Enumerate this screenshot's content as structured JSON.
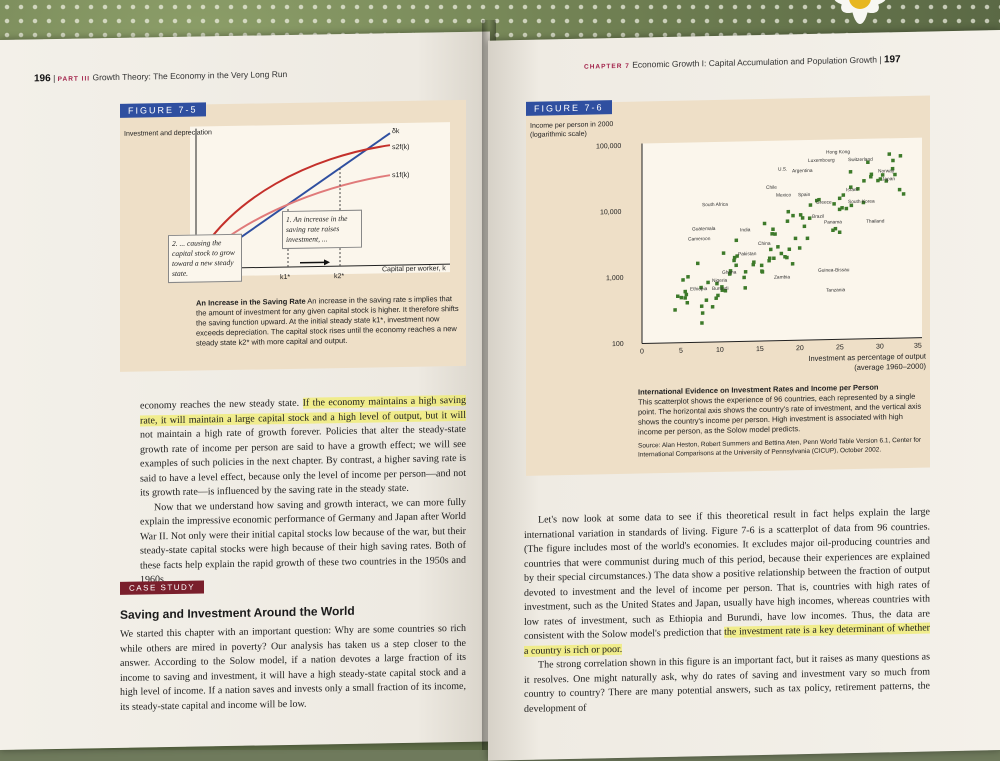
{
  "left_page": {
    "page_number": "196",
    "part_label": "PART III",
    "running_title": "Growth Theory: The Economy in the Very Long Run",
    "figure": {
      "tag": "FIGURE 7-5",
      "y_axis_label": "Investment and depreciation",
      "x_axis_label": "Capital per worker, k",
      "curve_labels": [
        "δk",
        "s2f(k)",
        "s1f(k)"
      ],
      "k_labels": [
        "k1*",
        "k2*"
      ],
      "note_1": "1. An increase in the saving rate raises investment, ...",
      "note_2": "2. ... causing the capital stock to grow toward a new steady state.",
      "caption_title": "An Increase in the Saving Rate",
      "caption_text": "An increase in the saving rate s implies that the amount of investment for any given capital stock is higher. It therefore shifts the saving function upward. At the initial steady state k1*, investment now exceeds depreciation. The capital stock rises until the economy reaches a new steady state k2* with more capital and output."
    },
    "body": {
      "p1_a": "economy reaches the new steady state. ",
      "p1_hl": "If the economy maintains a high saving rate, it will maintain a large capital stock and a high level of output, but it will",
      "p1_b": " not maintain a high rate of growth forever. Policies that alter the steady-state growth rate of income per person are said to have a growth effect; we will see examples of such policies in the next chapter. By contrast, a higher saving rate is said to have a level effect, because only the level of income per person—and not its growth rate—is influenced by the saving rate in the steady state.",
      "p2": "Now that we understand how saving and growth interact, we can more fully explain the impressive economic performance of Germany and Japan after World War II. Not only were their initial capital stocks low because of the war, but their steady-state capital stocks were high because of their high saving rates. Both of these facts help explain the rapid growth of these two countries in the 1950s and 1960s."
    },
    "case_study": {
      "tag": "CASE STUDY",
      "title": "Saving and Investment Around the World",
      "text": "We started this chapter with an important question: Why are some countries so rich while others are mired in poverty? Our analysis has taken us a step closer to the answer. According to the Solow model, if a nation devotes a large fraction of its income to saving and investment, it will have a high steady-state capital stock and a high level of income. If a nation saves and invests only a small fraction of its income, its steady-state capital and income will be low."
    }
  },
  "right_page": {
    "chapter_label": "CHAPTER 7",
    "running_title": "Economic Growth I: Capital Accumulation and Population Growth",
    "page_number": "197",
    "figure": {
      "tag": "FIGURE 7-6",
      "y_axis_label_1": "Income per person in 2000",
      "y_axis_label_2": "(logarithmic scale)",
      "y_ticks": [
        "100,000",
        "10,000",
        "1,000",
        "100"
      ],
      "x_ticks": [
        "0",
        "5",
        "10",
        "15",
        "20",
        "25",
        "30",
        "35"
      ],
      "x_axis_label_1": "Investment as percentage of output",
      "x_axis_label_2": "(average 1960–2000)",
      "countries": [
        "Hong Kong",
        "Luxembourg",
        "Switzerland",
        "U.S.",
        "Argentina",
        "Norway",
        "Japan",
        "Chile",
        "Mexico",
        "Spain",
        "Israel",
        "South Africa",
        "Greece",
        "South Korea",
        "Brazil",
        "Panama",
        "Thailand",
        "Guatemala",
        "India",
        "Cameroon",
        "China",
        "Pakistan",
        "Ghana",
        "Nigeria",
        "Zambia",
        "Guinea-Bissau",
        "Ethiopia",
        "Burundi",
        "Tanzania"
      ],
      "caption_title": "International Evidence on Investment Rates and Income per Person",
      "caption_text": "This scatterplot shows the experience of 96 countries, each represented by a single point. The horizontal axis shows the country's rate of investment, and the vertical axis shows the country's income per person. High investment is associated with high income per person, as the Solow model predicts.",
      "source": "Source: Alan Heston, Robert Summers and Bettina Aten, Penn World Table Version 6.1, Center for International Comparisons at the University of Pennsylvania (CICUP), October 2002."
    },
    "body": {
      "p1_a": "Let's now look at some data to see if this theoretical result in fact helps explain the large international variation in standards of living. Figure 7-6 is a scatterplot of data from 96 countries. (The figure includes most of the world's economies. It excludes major oil-producing countries and countries that were communist during much of this period, because their experiences are explained by their special circumstances.) The data show a positive relationship between the fraction of output devoted to investment and the level of income per person. That is, countries with high rates of investment, such as the United States and Japan, usually have high incomes, whereas countries with low rates of investment, such as Ethiopia and Burundi, have low incomes. Thus, the data are consistent with the Solow model's prediction that ",
      "p1_hl": "the investment rate is a key determinant of whether a country is rich or poor.",
      "p2": "The strong correlation shown in this figure is an important fact, but it raises as many questions as it resolves. One might naturally ask, why do rates of saving and investment vary so much from country to country? There are many potential answers, such as tax policy, retirement patterns, the development of"
    }
  }
}
